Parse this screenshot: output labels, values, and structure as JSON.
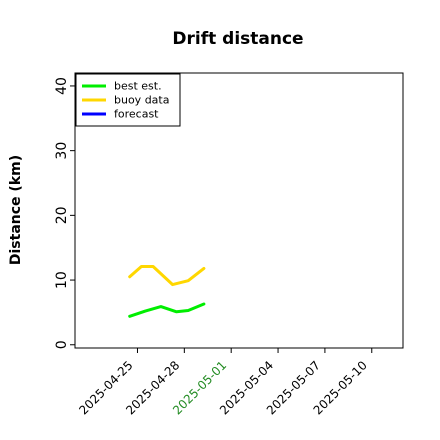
{
  "chart_data": {
    "type": "line",
    "title": "Drift distance",
    "xlabel": "",
    "ylabel": "Distance (km)",
    "ylim": [
      -0.5,
      42
    ],
    "xlim": [
      "2025-04-21T00:00",
      "2025-05-12T00:00"
    ],
    "yticks": [
      0,
      10,
      20,
      30,
      40
    ],
    "xticks": [
      "2025-04-25",
      "2025-04-28",
      "2025-05-01",
      "2025-05-04",
      "2025-05-07",
      "2025-05-10"
    ],
    "xtick_colors": [
      "#000000",
      "#000000",
      "#228b22",
      "#000000",
      "#000000",
      "#000000"
    ],
    "grid": false,
    "legend": {
      "placement": "top-left",
      "entries": [
        "best est.",
        "buoy data",
        "forecast"
      ]
    },
    "series": [
      {
        "name": "best est.",
        "color": "#00ee00",
        "points": [
          {
            "x": "2025-04-24T12:00",
            "y": 4.4
          },
          {
            "x": "2025-04-25T12:00",
            "y": 5.2
          },
          {
            "x": "2025-04-26T12:00",
            "y": 5.9
          },
          {
            "x": "2025-04-27T12:00",
            "y": 5.1
          },
          {
            "x": "2025-04-28T06:00",
            "y": 5.3
          },
          {
            "x": "2025-04-29T06:00",
            "y": 6.3
          }
        ]
      },
      {
        "name": "buoy data",
        "color": "#ffd700",
        "points": [
          {
            "x": "2025-04-24T12:00",
            "y": 10.5
          },
          {
            "x": "2025-04-25T06:00",
            "y": 12.1
          },
          {
            "x": "2025-04-26T00:00",
            "y": 12.1
          },
          {
            "x": "2025-04-27T06:00",
            "y": 9.3
          },
          {
            "x": "2025-04-28T06:00",
            "y": 9.9
          },
          {
            "x": "2025-04-29T06:00",
            "y": 11.8
          }
        ]
      },
      {
        "name": "forecast",
        "color": "#0000ff",
        "points": []
      }
    ]
  }
}
